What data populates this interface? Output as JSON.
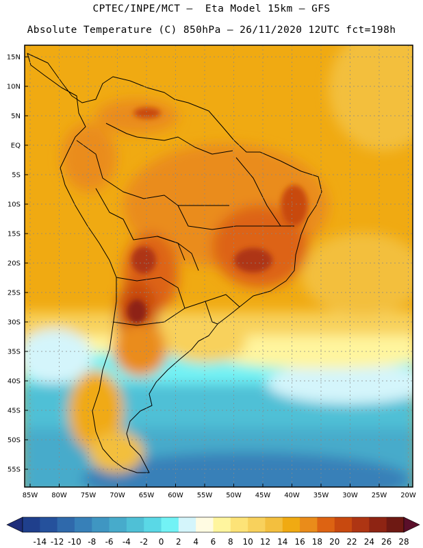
{
  "header": {
    "line1": "CPTEC/INPE/MCT —  Eta Model 15km — GFS",
    "line2": "Absolute Temperature (C) 850hPa — 26/11/2020 12UTC fct=198h"
  },
  "map": {
    "lat_labels": [
      "15N",
      "10N",
      "5N",
      "EQ",
      "5S",
      "10S",
      "15S",
      "20S",
      "25S",
      "30S",
      "35S",
      "40S",
      "45S",
      "50S",
      "55S"
    ],
    "lon_labels": [
      "85W",
      "80W",
      "75W",
      "70W",
      "65W",
      "60W",
      "55W",
      "50W",
      "45W",
      "40W",
      "35W",
      "30W",
      "25W",
      "20W"
    ]
  },
  "colorbar": {
    "labels": [
      "-14",
      "-12",
      "-10",
      "-8",
      "-6",
      "-4",
      "-2",
      "0",
      "2",
      "4",
      "6",
      "8",
      "10",
      "12",
      "14",
      "16",
      "18",
      "20",
      "22",
      "24",
      "26",
      "28"
    ],
    "colors": [
      "#1f3f8c",
      "#25519c",
      "#2f69ab",
      "#3780b8",
      "#3f96c2",
      "#47abcb",
      "#4fc0d6",
      "#5ad8e6",
      "#72f2f5",
      "#d4f5fb",
      "#fffbe2",
      "#fff59e",
      "#fde377",
      "#f8d15c",
      "#f3bf3e",
      "#f0aa12",
      "#ea8c1a",
      "#dd6312",
      "#c8490f",
      "#ae3513",
      "#8e2413",
      "#6e1913"
    ],
    "left_arrow_color": "#1e2d7a",
    "right_arrow_color": "#5a0f2a"
  }
}
